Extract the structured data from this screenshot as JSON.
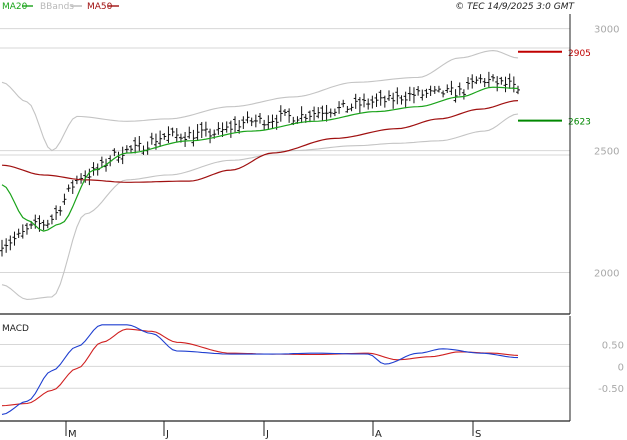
{
  "header": {
    "stamp": "© TEC 14/9/2025 3:0 GMT"
  },
  "legend": [
    {
      "label": "MA20",
      "color": "#1aa31a"
    },
    {
      "label": "BBands",
      "color": "#b8b8b8"
    },
    {
      "label": "MA50",
      "color": "#a01010"
    }
  ],
  "macd_title": "MACD",
  "colors": {
    "price": "#111111",
    "ma20": "#1aa31a",
    "ma50": "#a01010",
    "bbands": "#c4c4c4",
    "macd": "#1f3fd0",
    "signal": "#d02020",
    "grid": "#d7d7d7",
    "frame": "#222222",
    "level_up": "#c00000",
    "level_down": "#008800"
  },
  "chart_data": [
    {
      "type": "line",
      "title": "",
      "x_ticks": [
        "M",
        "J",
        "J",
        "A",
        "S"
      ],
      "y_ticks": [
        "2000",
        "2500",
        "3000"
      ],
      "ylim": [
        1830,
        3060
      ],
      "grid": true,
      "legend_placement": "top-left",
      "levels": [
        {
          "label": "2905",
          "value": 2905,
          "kind": "resistance"
        },
        {
          "label": "2623",
          "value": 2623,
          "kind": "support"
        }
      ],
      "series_samples": {
        "close_anchor": [
          [
            0,
            2120
          ],
          [
            10,
            2200
          ],
          [
            20,
            2400
          ],
          [
            30,
            2500
          ],
          [
            40,
            2560
          ],
          [
            50,
            2570
          ],
          [
            60,
            2620
          ],
          [
            70,
            2640
          ],
          [
            80,
            2670
          ],
          [
            90,
            2700
          ],
          [
            100,
            2730
          ],
          [
            110,
            2740
          ],
          [
            115,
            2790
          ],
          [
            122,
            2770
          ],
          [
            124,
            2740
          ]
        ],
        "ma20_anchor": [
          [
            0,
            2360
          ],
          [
            6,
            2215
          ],
          [
            10,
            2170
          ],
          [
            14,
            2200
          ],
          [
            22,
            2420
          ],
          [
            30,
            2490
          ],
          [
            45,
            2540
          ],
          [
            60,
            2580
          ],
          [
            75,
            2620
          ],
          [
            90,
            2660
          ],
          [
            100,
            2680
          ],
          [
            110,
            2720
          ],
          [
            118,
            2760
          ],
          [
            124,
            2755
          ]
        ],
        "ma50_anchor": [
          [
            0,
            2440
          ],
          [
            10,
            2400
          ],
          [
            20,
            2380
          ],
          [
            30,
            2370
          ],
          [
            45,
            2375
          ],
          [
            55,
            2420
          ],
          [
            65,
            2490
          ],
          [
            80,
            2550
          ],
          [
            95,
            2590
          ],
          [
            105,
            2630
          ],
          [
            115,
            2670
          ],
          [
            124,
            2705
          ]
        ],
        "bb_upper_anchor": [
          [
            0,
            2780
          ],
          [
            6,
            2700
          ],
          [
            12,
            2500
          ],
          [
            18,
            2640
          ],
          [
            30,
            2620
          ],
          [
            40,
            2630
          ],
          [
            55,
            2680
          ],
          [
            70,
            2720
          ],
          [
            85,
            2780
          ],
          [
            100,
            2800
          ],
          [
            110,
            2880
          ],
          [
            118,
            2910
          ],
          [
            124,
            2880
          ]
        ],
        "bb_lower_anchor": [
          [
            0,
            1950
          ],
          [
            6,
            1890
          ],
          [
            12,
            1900
          ],
          [
            20,
            2240
          ],
          [
            30,
            2380
          ],
          [
            40,
            2400
          ],
          [
            55,
            2460
          ],
          [
            70,
            2500
          ],
          [
            85,
            2520
          ],
          [
            95,
            2530
          ],
          [
            105,
            2540
          ],
          [
            116,
            2580
          ],
          [
            124,
            2650
          ]
        ]
      },
      "n_bars": 125
    },
    {
      "type": "line",
      "title": "MACD",
      "y_ticks": [
        "0.50",
        "0",
        "-0.50"
      ],
      "ylim": [
        -1.25,
        1.15
      ],
      "grid": true,
      "series_samples": {
        "macd_anchor": [
          [
            0,
            -1.1
          ],
          [
            6,
            -0.8
          ],
          [
            12,
            -0.1
          ],
          [
            18,
            0.45
          ],
          [
            24,
            0.95
          ],
          [
            30,
            0.95
          ],
          [
            36,
            0.75
          ],
          [
            42,
            0.35
          ],
          [
            55,
            0.28
          ],
          [
            65,
            0.28
          ],
          [
            75,
            0.3
          ],
          [
            88,
            0.28
          ],
          [
            92,
            0.05
          ],
          [
            100,
            0.3
          ],
          [
            106,
            0.4
          ],
          [
            115,
            0.3
          ],
          [
            124,
            0.2
          ]
        ],
        "signal_anchor": [
          [
            0,
            -0.9
          ],
          [
            6,
            -0.85
          ],
          [
            12,
            -0.55
          ],
          [
            18,
            -0.05
          ],
          [
            24,
            0.55
          ],
          [
            30,
            0.85
          ],
          [
            36,
            0.8
          ],
          [
            42,
            0.55
          ],
          [
            55,
            0.3
          ],
          [
            65,
            0.28
          ],
          [
            75,
            0.27
          ],
          [
            88,
            0.3
          ],
          [
            95,
            0.15
          ],
          [
            103,
            0.22
          ],
          [
            110,
            0.33
          ],
          [
            118,
            0.3
          ],
          [
            124,
            0.25
          ]
        ]
      }
    }
  ]
}
